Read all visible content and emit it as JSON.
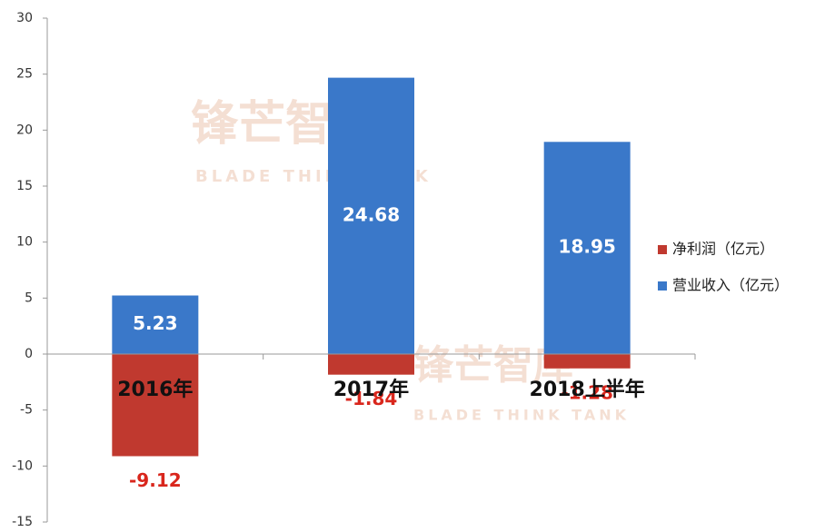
{
  "chart_data": {
    "type": "bar",
    "watermark": "锋芒智库",
    "watermark_sub": "BLADE THINK TANK",
    "categories": [
      "2016年",
      "2017年",
      "2018上半年"
    ],
    "series": [
      {
        "name": "净利润（亿元）",
        "color": "#c0392f",
        "values": [
          -9.12,
          -1.84,
          -1.28
        ]
      },
      {
        "name": "营业收入（亿元）",
        "color": "#3a78c9",
        "values": [
          5.23,
          24.68,
          18.95
        ]
      }
    ],
    "ylim": [
      -15,
      30
    ],
    "yticks": [
      -15,
      -10,
      -5,
      0,
      5,
      10,
      15,
      20,
      25,
      30
    ]
  }
}
